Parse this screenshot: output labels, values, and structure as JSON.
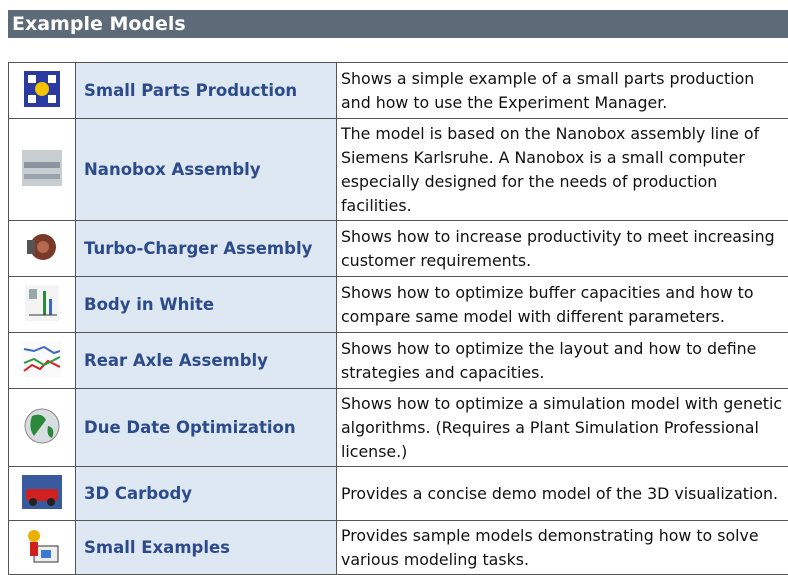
{
  "header": {
    "title": "Example Models"
  },
  "table": {
    "rows": [
      [
        "Small Parts Production",
        "Shows a simple example of a small parts production and how to use the Experiment Manager."
      ],
      [
        "Nanobox Assembly",
        "The model is based on the Nanobox assembly line of Siemens Karlsruhe. A Nanobox is a small computer especially designed for the needs of production facilities."
      ],
      [
        "Turbo-Charger Assembly",
        "Shows how to increase productivity to meet increasing customer requirements."
      ],
      [
        "Body in White",
        "Shows how to optimize buffer capacities and how to compare same model with different parameters."
      ],
      [
        "Rear Axle Assembly",
        "Shows how to optimize the layout and how to define strategies and capacities."
      ],
      [
        "Due Date Optimization",
        "Shows how to optimize a simulation model with genetic algorithms. (Requires a Plant Simulation Professional license.)"
      ],
      [
        "3D Carbody",
        "Provides a concise demo model of the 3D visualization."
      ],
      [
        "Small Examples",
        "Provides sample models demonstrating how to solve various modeling tasks."
      ]
    ]
  }
}
